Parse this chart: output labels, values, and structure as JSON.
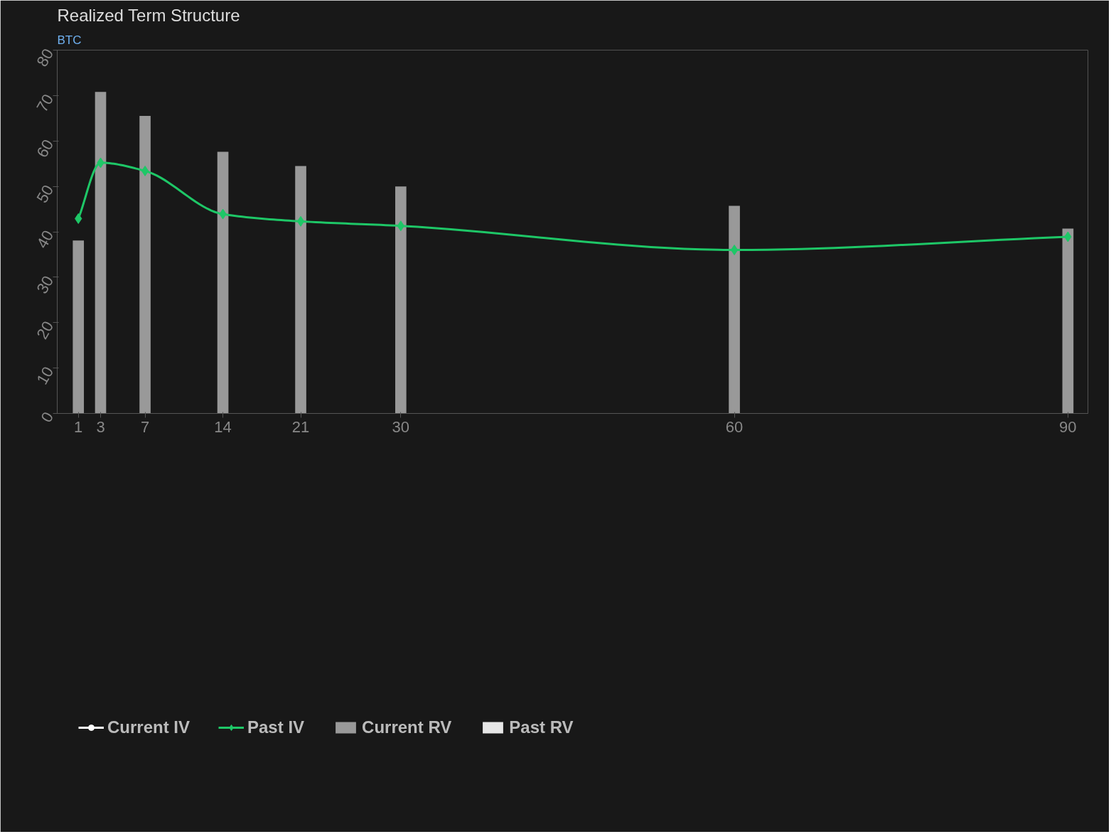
{
  "chart_data": {
    "type": "bar",
    "title": "Realized Term Structure",
    "subtitle": "BTC",
    "x": [
      1,
      3,
      7,
      14,
      21,
      30,
      60,
      90
    ],
    "xlim": [
      -0.9,
      91.8
    ],
    "xticks": [
      1,
      3,
      7,
      14,
      21,
      30,
      60,
      90
    ],
    "ylim": [
      0,
      80
    ],
    "yticks": [
      0,
      10,
      20,
      30,
      40,
      50,
      60,
      70,
      80
    ],
    "series": [
      {
        "name": "Current IV",
        "type": "line",
        "color": "#ffffff",
        "values": [
          null,
          null,
          null,
          null,
          null,
          null,
          null,
          null
        ]
      },
      {
        "name": "Past IV",
        "type": "line",
        "color": "#1ec767",
        "marker": "diamond",
        "values": [
          42.9,
          55.2,
          53.4,
          43.9,
          42.3,
          41.3,
          36.0,
          38.9
        ]
      },
      {
        "name": "Current RV",
        "color": "#999999",
        "values": [
          38.1,
          70.8,
          65.5,
          57.6,
          54.5,
          50.0,
          45.7,
          40.7
        ]
      },
      {
        "name": "Past RV",
        "color": "#e6e6e6",
        "values": [
          null,
          null,
          null,
          null,
          null,
          null,
          null,
          null
        ]
      }
    ],
    "grid": false,
    "legend": "bottom"
  }
}
